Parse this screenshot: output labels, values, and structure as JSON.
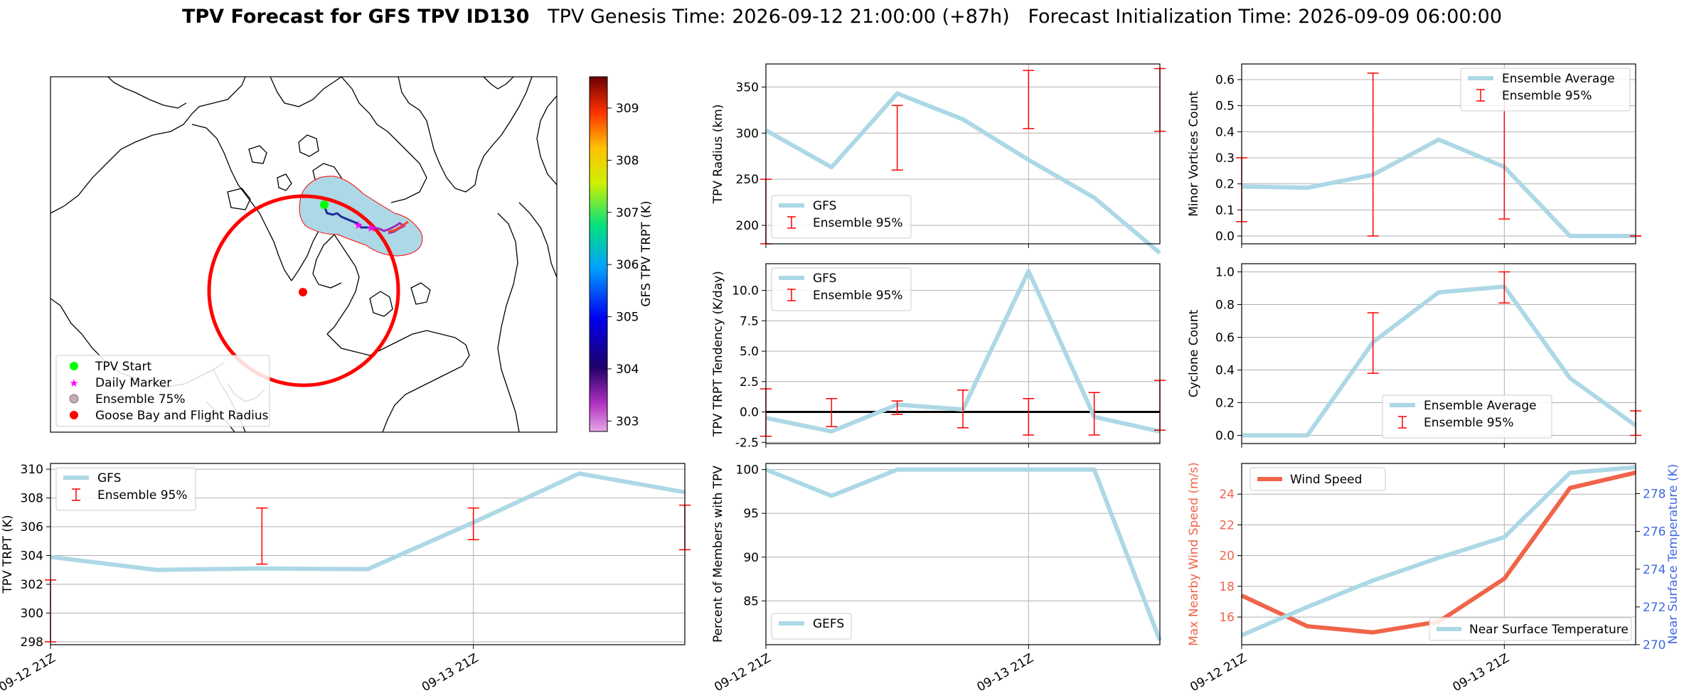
{
  "title": {
    "bold": "TPV Forecast for GFS TPV ID130",
    "rest": "   TPV Genesis Time: 2026-09-12 21:00:00 (+87h)   Forecast Initialization Time: 2026-09-09 06:00:00"
  },
  "map": {
    "legend": [
      "TPV Start",
      "Daily Marker",
      "Ensemble 75%",
      "Goose Bay and Flight Radius"
    ],
    "colors": {
      "start": "#00ff00",
      "daily": "#ff00ff",
      "ensemble_fill": "#add8e6",
      "ensemble_edge": "#ff0000",
      "goose": "#ff0000",
      "radius": "#ff0000"
    },
    "colorbar": {
      "label": "GFS TPV TRPT (K)",
      "ticks": [
        "303",
        "304",
        "305",
        "306",
        "307",
        "308",
        "309"
      ],
      "range": [
        302.8,
        309.6
      ]
    }
  },
  "chart_data": [
    {
      "id": "radius",
      "type": "line",
      "x": [
        "2026-09-12 21:00",
        "2026-09-13 03:00",
        "2026-09-13 09:00",
        "2026-09-13 15:00",
        "2026-09-13 21:00",
        "2026-09-14 03:00",
        "2026-09-14 09:00"
      ],
      "xlim": [
        0,
        6
      ],
      "ylabel": "TPV Radius (km)",
      "ylim": [
        180,
        375
      ],
      "yticks": [
        "200",
        "250",
        "300",
        "350"
      ],
      "xticks": [],
      "series": [
        {
          "name": "GFS",
          "values": [
            303,
            263,
            343,
            315,
            271,
            230,
            170
          ]
        }
      ],
      "errorbars": [
        {
          "x": 0,
          "low": 180,
          "high": 250
        },
        {
          "x": 2,
          "low": 260,
          "high": 330
        },
        {
          "x": 4,
          "low": 305,
          "high": 368
        },
        {
          "x": 6,
          "low": 302,
          "high": 370
        }
      ],
      "legend": [
        "GFS",
        "Ensemble 95%"
      ],
      "legend_loc": "lower-left"
    },
    {
      "id": "minor",
      "type": "line",
      "x": [
        "2026-09-12 21:00",
        "2026-09-13 03:00",
        "2026-09-13 09:00",
        "2026-09-13 15:00",
        "2026-09-13 21:00",
        "2026-09-14 03:00",
        "2026-09-14 09:00"
      ],
      "xlim": [
        0,
        6
      ],
      "ylabel": "Minor Vortices Count",
      "ylim": [
        -0.03,
        0.66
      ],
      "yticks": [
        "0.0",
        "0.1",
        "0.2",
        "0.3",
        "0.4",
        "0.5",
        "0.6"
      ],
      "xticks": [],
      "series": [
        {
          "name": "Ensemble Average",
          "values": [
            0.19,
            0.185,
            0.235,
            0.37,
            0.265,
            0.0,
            0.0
          ]
        }
      ],
      "errorbars": [
        {
          "x": 0,
          "low": 0.055,
          "high": 0.3
        },
        {
          "x": 2,
          "low": 0.0,
          "high": 0.625
        },
        {
          "x": 4,
          "low": 0.065,
          "high": 0.55
        },
        {
          "x": 6,
          "low": 0.0,
          "high": 0.0
        }
      ],
      "legend": [
        "Ensemble Average",
        "Ensemble 95%"
      ],
      "legend_loc": "top-right"
    },
    {
      "id": "tendency",
      "type": "line",
      "x": [
        "2026-09-12 21:00",
        "2026-09-13 03:00",
        "2026-09-13 09:00",
        "2026-09-13 15:00",
        "2026-09-13 21:00",
        "2026-09-14 03:00",
        "2026-09-14 09:00"
      ],
      "xlim": [
        0,
        6
      ],
      "ylabel": "TPV TRPT Tendency (K/day)",
      "ylim": [
        -2.6,
        12.2
      ],
      "yticks": [
        "-2.5",
        "0.0",
        "2.5",
        "5.0",
        "7.5",
        "10.0"
      ],
      "xticks": [],
      "zero_line": true,
      "series": [
        {
          "name": "GFS",
          "values": [
            -0.5,
            -1.6,
            0.6,
            0.2,
            11.6,
            -0.4,
            -1.6
          ]
        }
      ],
      "errorbars": [
        {
          "x": 0,
          "low": -2.0,
          "high": 1.9
        },
        {
          "x": 1,
          "low": -1.2,
          "high": 1.1
        },
        {
          "x": 2,
          "low": -0.2,
          "high": 0.9
        },
        {
          "x": 3,
          "low": -1.3,
          "high": 1.8
        },
        {
          "x": 4,
          "low": -1.9,
          "high": 1.1
        },
        {
          "x": 5,
          "low": -1.9,
          "high": 1.6
        },
        {
          "x": 6,
          "low": -1.5,
          "high": 2.6
        }
      ],
      "legend": [
        "GFS",
        "Ensemble 95%"
      ],
      "legend_loc": "top-left"
    },
    {
      "id": "cyclone",
      "type": "line",
      "x": [
        "2026-09-12 21:00",
        "2026-09-13 03:00",
        "2026-09-13 09:00",
        "2026-09-13 15:00",
        "2026-09-13 21:00",
        "2026-09-14 03:00",
        "2026-09-14 09:00"
      ],
      "xlim": [
        0,
        6
      ],
      "ylabel": "Cyclone Count",
      "ylim": [
        -0.05,
        1.05
      ],
      "yticks": [
        "0.0",
        "0.2",
        "0.4",
        "0.6",
        "0.8",
        "1.0"
      ],
      "xticks": [],
      "series": [
        {
          "name": "Ensemble Average",
          "values": [
            0.0,
            0.0,
            0.57,
            0.875,
            0.91,
            0.35,
            0.06
          ]
        }
      ],
      "errorbars": [
        {
          "x": 2,
          "low": 0.38,
          "high": 0.75
        },
        {
          "x": 4,
          "low": 0.81,
          "high": 1.0
        },
        {
          "x": 6,
          "low": 0.0,
          "high": 0.15
        }
      ],
      "legend": [
        "Ensemble Average",
        "Ensemble 95%"
      ],
      "legend_loc": "bottom-center"
    },
    {
      "id": "trpt",
      "type": "line",
      "x": [
        "2026-09-12 21:00",
        "2026-09-13 03:00",
        "2026-09-13 09:00",
        "2026-09-13 15:00",
        "2026-09-13 21:00",
        "2026-09-14 03:00",
        "2026-09-14 09:00"
      ],
      "xlim": [
        0,
        6
      ],
      "ylabel": "TPV TRPT (K)",
      "ylim": [
        297.8,
        310.4
      ],
      "yticks": [
        "298",
        "300",
        "302",
        "304",
        "306",
        "308",
        "310"
      ],
      "xticks": [
        {
          "x": 0,
          "label": "09-12 21Z"
        },
        {
          "x": 4,
          "label": "09-13 21Z"
        }
      ],
      "series": [
        {
          "name": "GFS",
          "values": [
            303.9,
            303.0,
            303.1,
            303.05,
            306.3,
            309.7,
            308.4
          ]
        }
      ],
      "errorbars": [
        {
          "x": 0,
          "low": 298.0,
          "high": 302.3
        },
        {
          "x": 2,
          "low": 303.4,
          "high": 307.3
        },
        {
          "x": 4,
          "low": 305.1,
          "high": 307.3
        },
        {
          "x": 6,
          "low": 304.4,
          "high": 307.5
        }
      ],
      "legend": [
        "GFS",
        "Ensemble 95%"
      ],
      "legend_loc": "top-left"
    },
    {
      "id": "members",
      "type": "line",
      "x": [
        "2026-09-12 21:00",
        "2026-09-13 03:00",
        "2026-09-13 09:00",
        "2026-09-13 15:00",
        "2026-09-13 21:00",
        "2026-09-14 03:00",
        "2026-09-14 09:00"
      ],
      "xlim": [
        0,
        6
      ],
      "ylabel": "Percent of Members with TPV",
      "ylim": [
        80.0,
        100.7
      ],
      "yticks": [
        "85",
        "90",
        "95",
        "100"
      ],
      "xticks": [
        {
          "x": 0,
          "label": "09-12 21Z"
        },
        {
          "x": 4,
          "label": "09-13 21Z"
        }
      ],
      "series": [
        {
          "name": "GEFS",
          "values": [
            100,
            97,
            100,
            100,
            100,
            100,
            80.5
          ]
        }
      ],
      "errorbars": [],
      "legend": [
        "GEFS"
      ],
      "legend_loc": "bottom-left"
    },
    {
      "id": "wind",
      "type": "line",
      "x": [
        "2026-09-12 21:00",
        "2026-09-13 03:00",
        "2026-09-13 09:00",
        "2026-09-13 15:00",
        "2026-09-13 21:00",
        "2026-09-14 03:00",
        "2026-09-14 09:00"
      ],
      "xlim": [
        0,
        6
      ],
      "ylabel": "Max Nearby Wind Speed (m/s)",
      "ylim": [
        14.2,
        26.0
      ],
      "yticks": [
        "16",
        "18",
        "20",
        "22",
        "24"
      ],
      "y2label": "Near Surface Temperature (K)",
      "y2lim": [
        270.0,
        279.6
      ],
      "y2ticks": [
        "270",
        "272",
        "274",
        "276",
        "278"
      ],
      "xticks": [
        {
          "x": 0,
          "label": "09-12 21Z"
        },
        {
          "x": 4,
          "label": "09-13 21Z"
        }
      ],
      "series": [
        {
          "name": "Wind Speed",
          "axis": "left",
          "values": [
            17.4,
            15.4,
            15.0,
            15.7,
            18.5,
            24.4,
            25.4
          ]
        },
        {
          "name": "Near Surface Temperature",
          "axis": "right",
          "values": [
            270.5,
            272.0,
            273.4,
            274.6,
            275.7,
            279.1,
            279.4
          ]
        }
      ],
      "errorbars": [],
      "legend": [
        "Wind Speed",
        "Near Surface Temperature"
      ],
      "colors": {
        "wind": "#f0644a",
        "temp": "#add8e6",
        "left_axis": "#f0644a",
        "right_axis": "#4169e1"
      }
    }
  ]
}
